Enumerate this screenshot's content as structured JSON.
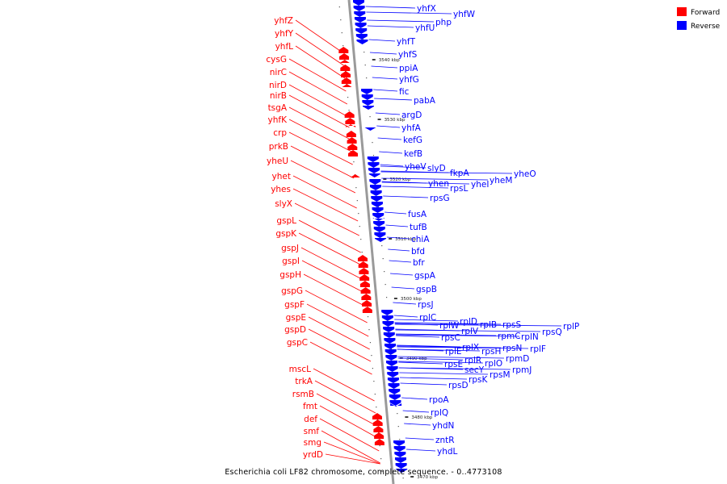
{
  "caption": "Escherichia coli LF82 chromosome, complete sequence. - 0..4773108",
  "legend": {
    "forward": {
      "label": "Forward",
      "color": "#ff0000"
    },
    "reverse": {
      "label": "Reverse",
      "color": "#0000ff"
    }
  },
  "colors": {
    "forward": "#ff0000",
    "reverse": "#0000ff",
    "axis": "#888888"
  },
  "ticks": [
    "3540 kbp",
    "3530 kbp",
    "3520 kbp",
    "3510 kbp",
    "3500 kbp",
    "3490 kbp",
    "3480 kbp",
    "3470 kbp"
  ],
  "forward_genes": [
    "yhfZ",
    "yhfY",
    "yhfL",
    "cysG",
    "nirC",
    "nirD",
    "nirB",
    "tsgA",
    "yhfK",
    "crp",
    "prkB",
    "yheU",
    "yhet",
    "yhes",
    "slyX",
    "gspL",
    "gspK",
    "gspJ",
    "gspI",
    "gspH",
    "gspG",
    "gspF",
    "gspE",
    "gspD",
    "gspC",
    "mscL",
    "trkA",
    "rsmB",
    "fmt",
    "def",
    "smf",
    "smg",
    "yrdD"
  ],
  "reverse_genes": [
    "yhfX",
    "yhfW",
    "php",
    "yhfU",
    "yhfT",
    "yhfS",
    "ppiA",
    "yhfG",
    "fic",
    "pabA",
    "argD",
    "yhfA",
    "kefG",
    "kefB",
    "yheV",
    "slyD",
    "fkpA",
    "yheO",
    "yhen",
    "yheI",
    "yheM",
    "rpsL",
    "rpsG",
    "fusA",
    "tufB",
    "chiA",
    "bfd",
    "bfr",
    "gspA",
    "gspB",
    "rpsJ",
    "rplC",
    "rplW",
    "rplD",
    "rplB",
    "rpsS",
    "rplP",
    "rpsC",
    "rplV",
    "rpmC",
    "rplN",
    "rpsQ",
    "rplE",
    "rplX",
    "rpsH",
    "rpsN",
    "rplF",
    "rpsE",
    "rplR",
    "rplO",
    "rpmD",
    "secY",
    "rpmJ",
    "rpsK",
    "rpsM",
    "rpsD",
    "rpoA",
    "rplQ",
    "yhdN",
    "zntR",
    "yhdL"
  ]
}
